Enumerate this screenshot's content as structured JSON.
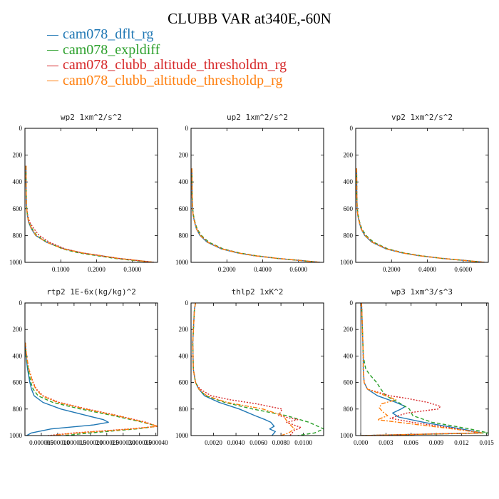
{
  "title": "CLUBB VAR at340E,-60N",
  "legend": [
    {
      "label": "cam078_dflt_rg",
      "color": "#1f77b4",
      "dash": ""
    },
    {
      "label": "cam078_expldiff",
      "color": "#2ca02c",
      "dash": "5,3"
    },
    {
      "label": "cam078_clubb_altitude_thresholdm_rg",
      "color": "#d62728",
      "dash": "2,2"
    },
    {
      "label": "cam078_clubb_altitude_thresholdp_rg",
      "color": "#ff7f0e",
      "dash": "6,2,2,2"
    }
  ],
  "chart_data": [
    {
      "type": "line",
      "title": "wp2  1xm^2/s^2",
      "xlim": [
        0,
        0.37
      ],
      "ylim": [
        1000,
        0
      ],
      "xticks": [
        0.1,
        0.2,
        0.3
      ],
      "xticklabels": [
        "0.1000",
        "0.2000",
        "0.3000"
      ],
      "yticks": [
        0,
        200,
        400,
        600,
        800,
        1000
      ],
      "series": [
        {
          "name": "cam078_dflt_rg",
          "pressure": [
            280,
            400,
            550,
            600,
            650,
            700,
            750,
            800,
            850,
            900,
            930,
            950,
            970,
            985,
            1000
          ],
          "values": [
            0.003,
            0.003,
            0.004,
            0.005,
            0.007,
            0.01,
            0.018,
            0.03,
            0.06,
            0.11,
            0.16,
            0.21,
            0.26,
            0.31,
            0.36
          ]
        },
        {
          "name": "cam078_expldiff",
          "pressure": [
            280,
            400,
            550,
            600,
            650,
            700,
            750,
            800,
            850,
            900,
            930,
            950,
            970,
            985,
            1000
          ],
          "values": [
            0.003,
            0.003,
            0.004,
            0.005,
            0.007,
            0.011,
            0.02,
            0.033,
            0.062,
            0.105,
            0.15,
            0.2,
            0.25,
            0.3,
            0.36
          ]
        },
        {
          "name": "cam078_clubb_altitude_thresholdm_rg",
          "pressure": [
            280,
            400,
            550,
            600,
            650,
            700,
            750,
            800,
            850,
            900,
            930,
            950,
            970,
            985,
            1000
          ],
          "values": [
            0.003,
            0.003,
            0.004,
            0.005,
            0.008,
            0.013,
            0.025,
            0.04,
            0.068,
            0.112,
            0.16,
            0.21,
            0.26,
            0.31,
            0.36
          ]
        },
        {
          "name": "cam078_clubb_altitude_thresholdp_rg",
          "pressure": [
            280,
            400,
            550,
            600,
            650,
            700,
            750,
            800,
            850,
            900,
            930,
            950,
            970,
            985,
            1000
          ],
          "values": [
            0.003,
            0.003,
            0.004,
            0.005,
            0.007,
            0.01,
            0.019,
            0.031,
            0.06,
            0.108,
            0.16,
            0.21,
            0.26,
            0.31,
            0.36
          ]
        }
      ]
    },
    {
      "type": "line",
      "title": "up2  1xm^2/s^2",
      "xlim": [
        0,
        0.74
      ],
      "ylim": [
        1000,
        0
      ],
      "xticks": [
        0.2,
        0.4,
        0.6
      ],
      "xticklabels": [
        "0.2000",
        "0.4000",
        "0.6000"
      ],
      "yticks": [
        0,
        200,
        400,
        600,
        800,
        1000
      ],
      "series": [
        {
          "name": "cam078_dflt_rg",
          "pressure": [
            300,
            500,
            600,
            650,
            700,
            750,
            800,
            850,
            900,
            930,
            950,
            970,
            985,
            1000
          ],
          "values": [
            0.005,
            0.006,
            0.008,
            0.012,
            0.02,
            0.03,
            0.05,
            0.09,
            0.17,
            0.26,
            0.35,
            0.48,
            0.6,
            0.72
          ]
        },
        {
          "name": "cam078_expldiff",
          "pressure": [
            300,
            500,
            600,
            650,
            700,
            750,
            800,
            850,
            900,
            930,
            950,
            970,
            985,
            1000
          ],
          "values": [
            0.005,
            0.006,
            0.009,
            0.014,
            0.022,
            0.034,
            0.058,
            0.1,
            0.18,
            0.27,
            0.36,
            0.48,
            0.6,
            0.72
          ]
        },
        {
          "name": "cam078_clubb_altitude_thresholdm_rg",
          "pressure": [
            300,
            500,
            600,
            650,
            700,
            750,
            800,
            850,
            900,
            930,
            950,
            970,
            985,
            1000
          ],
          "values": [
            0.005,
            0.006,
            0.008,
            0.012,
            0.02,
            0.032,
            0.053,
            0.095,
            0.175,
            0.265,
            0.35,
            0.48,
            0.6,
            0.72
          ]
        },
        {
          "name": "cam078_clubb_altitude_thresholdp_rg",
          "pressure": [
            300,
            500,
            600,
            650,
            700,
            750,
            800,
            850,
            900,
            930,
            950,
            970,
            985,
            1000
          ],
          "values": [
            0.005,
            0.006,
            0.008,
            0.012,
            0.02,
            0.031,
            0.052,
            0.093,
            0.172,
            0.262,
            0.35,
            0.48,
            0.6,
            0.72
          ]
        }
      ]
    },
    {
      "type": "line",
      "title": "vp2  1xm^2/s^2",
      "xlim": [
        0,
        0.74
      ],
      "ylim": [
        1000,
        0
      ],
      "xticks": [
        0.2,
        0.4,
        0.6
      ],
      "xticklabels": [
        "0.2000",
        "0.4000",
        "0.6000"
      ],
      "yticks": [
        0,
        200,
        400,
        600,
        800,
        1000
      ],
      "series": [
        {
          "name": "cam078_dflt_rg",
          "pressure": [
            300,
            500,
            600,
            650,
            700,
            750,
            800,
            850,
            900,
            930,
            950,
            970,
            985,
            1000
          ],
          "values": [
            0.005,
            0.006,
            0.008,
            0.012,
            0.02,
            0.03,
            0.05,
            0.09,
            0.17,
            0.26,
            0.35,
            0.48,
            0.6,
            0.72
          ]
        },
        {
          "name": "cam078_expldiff",
          "pressure": [
            300,
            500,
            600,
            650,
            700,
            750,
            800,
            850,
            900,
            930,
            950,
            970,
            985,
            1000
          ],
          "values": [
            0.005,
            0.006,
            0.009,
            0.014,
            0.022,
            0.034,
            0.058,
            0.1,
            0.18,
            0.27,
            0.36,
            0.48,
            0.6,
            0.72
          ]
        },
        {
          "name": "cam078_clubb_altitude_thresholdm_rg",
          "pressure": [
            300,
            500,
            600,
            650,
            700,
            750,
            800,
            850,
            900,
            930,
            950,
            970,
            985,
            1000
          ],
          "values": [
            0.005,
            0.006,
            0.008,
            0.012,
            0.02,
            0.032,
            0.053,
            0.095,
            0.175,
            0.265,
            0.35,
            0.48,
            0.6,
            0.72
          ]
        },
        {
          "name": "cam078_clubb_altitude_thresholdp_rg",
          "pressure": [
            300,
            500,
            600,
            650,
            700,
            750,
            800,
            850,
            900,
            930,
            950,
            970,
            985,
            1000
          ],
          "values": [
            0.005,
            0.006,
            0.008,
            0.012,
            0.02,
            0.031,
            0.052,
            0.093,
            0.172,
            0.262,
            0.35,
            0.48,
            0.6,
            0.72
          ]
        }
      ]
    },
    {
      "type": "line",
      "title": "rtp2  1E-6x(kg/kg)^2",
      "xlim": [
        0,
        4.05e-05
      ],
      "ylim": [
        1000,
        0
      ],
      "xticks": [
        5e-06,
        1e-05,
        1.5e-05,
        2e-05,
        2.5e-05,
        3e-05,
        3.5e-05,
        4e-05
      ],
      "xticklabels": [
        "0.000005",
        "0.000010",
        "0.000015",
        "0.000020",
        "0.000025",
        "0.000030",
        "0.000035",
        "0.000040"
      ],
      "yticks": [
        0,
        200,
        400,
        600,
        800,
        1000
      ],
      "series": [
        {
          "name": "cam078_dflt_rg",
          "pressure": [
            300,
            400,
            500,
            600,
            650,
            700,
            750,
            800,
            850,
            880,
            900,
            920,
            950,
            980,
            1000
          ],
          "values": [
            1e-07,
            3e-07,
            8e-07,
            1.5e-06,
            2e-06,
            2.8e-06,
            5.5e-06,
            1.1e-05,
            1.9e-05,
            2.4e-05,
            2.55e-05,
            2.1e-05,
            8e-06,
            2e-06,
            5e-07
          ]
        },
        {
          "name": "cam078_expldiff",
          "pressure": [
            300,
            400,
            500,
            600,
            650,
            700,
            750,
            800,
            850,
            900,
            930,
            950,
            980,
            1000
          ],
          "values": [
            1e-07,
            4e-07,
            1e-06,
            1.8e-06,
            2.5e-06,
            4e-06,
            8.5e-06,
            1.7e-05,
            2.7e-05,
            3.6e-05,
            4.05e-05,
            3.4e-05,
            2e-05,
            1.2e-05
          ]
        },
        {
          "name": "cam078_clubb_altitude_thresholdm_rg",
          "pressure": [
            300,
            400,
            500,
            600,
            650,
            700,
            750,
            800,
            850,
            900,
            930,
            950,
            980,
            1000
          ],
          "values": [
            1e-07,
            5e-07,
            1.2e-06,
            2.5e-06,
            3.5e-06,
            5.5e-06,
            1.05e-05,
            1.9e-05,
            2.85e-05,
            3.7e-05,
            4.05e-05,
            3.2e-05,
            1.5e-05,
            7e-06
          ]
        },
        {
          "name": "cam078_clubb_altitude_thresholdp_rg",
          "pressure": [
            300,
            400,
            500,
            600,
            650,
            700,
            750,
            800,
            850,
            900,
            930,
            950,
            980,
            1000
          ],
          "values": [
            1e-07,
            5e-07,
            1.2e-06,
            2.4e-06,
            3.3e-06,
            5.2e-06,
            1e-05,
            1.85e-05,
            2.8e-05,
            3.65e-05,
            4.05e-05,
            3.3e-05,
            1.6e-05,
            8e-06
          ]
        }
      ]
    },
    {
      "type": "line",
      "title": "thlp2  1xK^2",
      "xlim": [
        0,
        0.0118
      ],
      "ylim": [
        1000,
        0
      ],
      "xticks": [
        0.002,
        0.004,
        0.006,
        0.008,
        0.01
      ],
      "xticklabels": [
        "0.0020",
        "0.0040",
        "0.0060",
        "0.0080",
        "0.0100"
      ],
      "yticks": [
        0,
        200,
        400,
        600,
        800,
        1000
      ],
      "series": [
        {
          "name": "cam078_dflt_rg",
          "pressure": [
            0,
            50,
            300,
            500,
            600,
            650,
            700,
            750,
            800,
            850,
            880,
            900,
            930,
            950,
            970,
            1000
          ],
          "values": [
            0.0004,
            0.0003,
            0.00015,
            0.0002,
            0.0004,
            0.0007,
            0.0012,
            0.0025,
            0.0043,
            0.0057,
            0.0066,
            0.0071,
            0.0074,
            0.007,
            0.0075,
            0.0072
          ]
        },
        {
          "name": "cam078_expldiff",
          "pressure": [
            0,
            50,
            300,
            500,
            600,
            650,
            700,
            750,
            800,
            850,
            900,
            950,
            980,
            1000
          ],
          "values": [
            0.0004,
            0.0003,
            0.00015,
            0.0002,
            0.0004,
            0.0007,
            0.0013,
            0.003,
            0.0055,
            0.0085,
            0.0105,
            0.0118,
            0.011,
            0.0095
          ]
        },
        {
          "name": "cam078_clubb_altitude_thresholdm_rg",
          "pressure": [
            0,
            50,
            300,
            500,
            600,
            650,
            700,
            730,
            760,
            800,
            850,
            880,
            900,
            940,
            960,
            1000
          ],
          "values": [
            0.0004,
            0.0003,
            0.00015,
            0.0002,
            0.0004,
            0.0008,
            0.0018,
            0.0035,
            0.0058,
            0.0081,
            0.0078,
            0.0095,
            0.0085,
            0.0098,
            0.0092,
            0.0088
          ]
        },
        {
          "name": "cam078_clubb_altitude_thresholdp_rg",
          "pressure": [
            0,
            50,
            300,
            500,
            600,
            650,
            700,
            750,
            800,
            850,
            900,
            950,
            980,
            1000
          ],
          "values": [
            0.0004,
            0.0003,
            0.00015,
            0.0002,
            0.0004,
            0.0007,
            0.0014,
            0.0032,
            0.0064,
            0.0082,
            0.0086,
            0.0092,
            0.0087,
            0.008
          ]
        }
      ]
    },
    {
      "type": "line",
      "title": "wp3  1xm^3/s^3",
      "xlim": [
        -0.0006,
        0.0152
      ],
      "ylim": [
        1000,
        0
      ],
      "xticks": [
        0,
        0.003,
        0.006,
        0.009,
        0.012,
        0.015
      ],
      "xticklabels": [
        "0.000",
        "0.003",
        "0.006",
        "0.009",
        "0.012",
        "0.015"
      ],
      "yticks": [
        0,
        200,
        400,
        600,
        800,
        1000
      ],
      "series": [
        {
          "name": "cam078_dflt_rg",
          "pressure": [
            0,
            200,
            400,
            500,
            600,
            650,
            700,
            750,
            780,
            800,
            830,
            860,
            900,
            950,
            980,
            1000
          ],
          "values": [
            0.0001,
            0.0002,
            0.0003,
            0.0003,
            0.0004,
            0.0008,
            0.002,
            0.0042,
            0.0053,
            0.0048,
            0.0038,
            0.0045,
            0.0075,
            0.012,
            0.0145,
            0.0
          ]
        },
        {
          "name": "cam078_expldiff",
          "pressure": [
            0,
            200,
            400,
            500,
            550,
            600,
            650,
            700,
            750,
            800,
            850,
            900,
            950,
            980,
            1000
          ],
          "values": [
            0.0001,
            0.0002,
            0.0003,
            0.0006,
            0.0012,
            0.0019,
            0.0024,
            0.003,
            0.0045,
            0.0058,
            0.0062,
            0.0085,
            0.013,
            0.0152,
            0.0
          ]
        },
        {
          "name": "cam078_clubb_altitude_thresholdm_rg",
          "pressure": [
            0,
            200,
            400,
            500,
            600,
            650,
            700,
            720,
            750,
            780,
            800,
            830,
            870,
            900,
            950,
            980,
            1000
          ],
          "values": [
            0.0001,
            0.0002,
            0.0003,
            0.0003,
            0.0004,
            0.0008,
            0.0035,
            0.0055,
            0.008,
            0.0095,
            0.0092,
            0.0055,
            0.0035,
            0.0062,
            0.0115,
            0.0142,
            0.0
          ]
        },
        {
          "name": "cam078_clubb_altitude_thresholdp_rg",
          "pressure": [
            0,
            200,
            400,
            500,
            600,
            650,
            700,
            730,
            760,
            790,
            820,
            850,
            880,
            900,
            950,
            980,
            1000
          ],
          "values": [
            0.0001,
            0.0002,
            0.0003,
            0.0003,
            0.0004,
            0.0008,
            0.003,
            0.0042,
            0.0025,
            0.0022,
            0.0026,
            0.0032,
            0.002,
            0.0045,
            0.011,
            0.0145,
            0.0
          ]
        }
      ]
    }
  ]
}
